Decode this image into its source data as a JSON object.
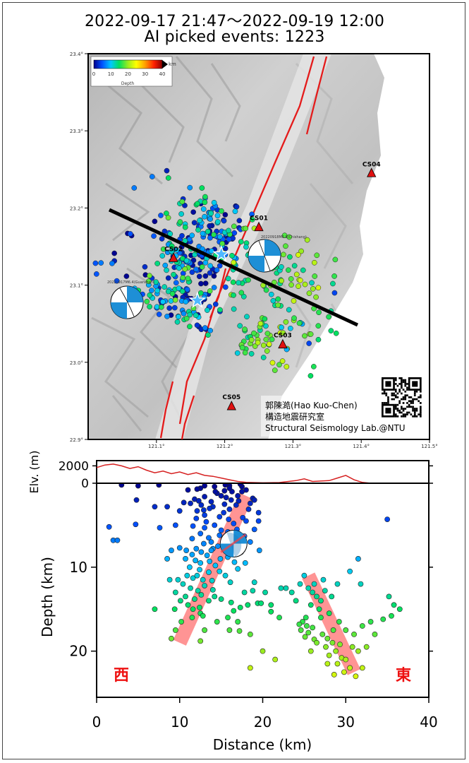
{
  "title_line1": "2022-09-17 21:47～2022-09-19 12:00",
  "title_line2": "AI picked events: 1223",
  "map": {
    "lon_ticks": [
      "121.1°",
      "121.2°",
      "121.3°",
      "121.4°",
      "121.5°"
    ],
    "lat_ticks": [
      "23.4°",
      "23.3°",
      "23.2°",
      "23.1°",
      "23.0°",
      "22.9°"
    ],
    "depth_scale": {
      "ticks": [
        "0",
        "10",
        "20",
        "30",
        "40"
      ],
      "unit": "km",
      "label": "Depth",
      "colors": [
        "#00008b",
        "#0050ff",
        "#00c8ff",
        "#00e060",
        "#9aec20",
        "#ffff00",
        "#ffa000",
        "#ff2000",
        "#8b0000"
      ]
    },
    "stations": [
      {
        "name": "CS01",
        "lon": 121.25,
        "lat": 23.175
      },
      {
        "name": "CS02",
        "lon": 121.125,
        "lat": 23.135
      },
      {
        "name": "CS03",
        "lon": 121.285,
        "lat": 23.023
      },
      {
        "name": "CS04",
        "lon": 121.415,
        "lat": 23.245
      },
      {
        "name": "CS05",
        "lon": 121.21,
        "lat": 22.943
      }
    ],
    "mainshocks": [
      {
        "lon": 121.195,
        "lat": 23.14
      },
      {
        "lon": 121.16,
        "lat": 23.08
      }
    ],
    "beachball_labels": [
      "20220918M6.8(Chishang)",
      "20220917M6.4(Guanshan)"
    ],
    "credits": [
      "郭陳澔(Hao Kuo-Chen)",
      "構造地震研究室",
      "Structural Seismology Lab.@NTU"
    ]
  },
  "chart_data": {
    "type": "scatter",
    "title": "",
    "xlabel": "Distance (km)",
    "ylabel": "Depth (km)",
    "elev_label": "Elv. (m)",
    "xlim": [
      0,
      40
    ],
    "ylim": [
      25.5,
      0
    ],
    "elev_lim": [
      0,
      2600
    ],
    "x_ticks": [
      0,
      10,
      20,
      30,
      40
    ],
    "depth_ticks": [
      10,
      20
    ],
    "elev_ticks": [
      0,
      2000
    ],
    "labels": {
      "west": "西",
      "east": "東"
    },
    "elevation": [
      [
        0,
        1800
      ],
      [
        1,
        2100
      ],
      [
        2,
        2200
      ],
      [
        3,
        2000
      ],
      [
        4,
        1700
      ],
      [
        5,
        1900
      ],
      [
        6,
        1500
      ],
      [
        7,
        1200
      ],
      [
        8,
        1400
      ],
      [
        9,
        1100
      ],
      [
        10,
        1300
      ],
      [
        11,
        1000
      ],
      [
        12,
        1200
      ],
      [
        13,
        900
      ],
      [
        14,
        800
      ],
      [
        15,
        600
      ],
      [
        16,
        400
      ],
      [
        17,
        200
      ],
      [
        18,
        100
      ],
      [
        20,
        50
      ],
      [
        22,
        80
      ],
      [
        24,
        300
      ],
      [
        25,
        500
      ],
      [
        26,
        200
      ],
      [
        28,
        300
      ],
      [
        29,
        600
      ],
      [
        30,
        900
      ],
      [
        31,
        400
      ],
      [
        32,
        100
      ],
      [
        33,
        0
      ],
      [
        40,
        0
      ]
    ],
    "fault_zones": [
      {
        "top": [
          18,
          1.5
        ],
        "bottom": [
          10,
          19
        ]
      },
      {
        "top": [
          25.5,
          11
        ],
        "bottom": [
          31,
          22.5
        ]
      }
    ],
    "mainshock_section": {
      "x": 16.5,
      "depth": 7.2
    },
    "events": [
      [
        3.0,
        0.2
      ],
      [
        5.0,
        0.3
      ],
      [
        7.5,
        0.2
      ],
      [
        13.0,
        0.3
      ],
      [
        16.0,
        0.3
      ],
      [
        15.5,
        0.2
      ],
      [
        17.5,
        0.4
      ],
      [
        11.0,
        0.8
      ],
      [
        12.5,
        0.6
      ],
      [
        17.3,
        0.1
      ],
      [
        12.1,
        0.7
      ],
      [
        16.3,
        1.0
      ],
      [
        16.0,
        0.6
      ],
      [
        14.2,
        0.4
      ],
      [
        18.0,
        0.8
      ],
      [
        15.4,
        0.9
      ],
      [
        16.2,
        2.0
      ],
      [
        14.5,
        1.2
      ],
      [
        15.0,
        1.5
      ],
      [
        13.0,
        1.6
      ],
      [
        11.8,
        1.9
      ],
      [
        12.3,
        2.1
      ],
      [
        17.5,
        1.0
      ],
      [
        18.8,
        1.8
      ],
      [
        17.0,
        1.5
      ],
      [
        19.0,
        2.0
      ],
      [
        15.6,
        1.7
      ],
      [
        13.8,
        2.2
      ],
      [
        14.3,
        1.0
      ],
      [
        16.8,
        2.6
      ],
      [
        14.0,
        2.8
      ],
      [
        11.3,
        2.4
      ],
      [
        13.6,
        3.0
      ],
      [
        12.9,
        3.2
      ],
      [
        15.3,
        3.5
      ],
      [
        13.0,
        3.8
      ],
      [
        16.0,
        3.1
      ],
      [
        14.8,
        4.0
      ],
      [
        15.4,
        2.5
      ],
      [
        10.5,
        2.3
      ],
      [
        18.5,
        2.4
      ],
      [
        12.6,
        2.6
      ],
      [
        17.1,
        2.1
      ],
      [
        18.3,
        3.1
      ],
      [
        19.5,
        3.5
      ],
      [
        12.0,
        4.2
      ],
      [
        13.2,
        4.6
      ],
      [
        15.9,
        4.3
      ],
      [
        17.6,
        4.1
      ],
      [
        16.5,
        4.8
      ],
      [
        18.0,
        4.5
      ],
      [
        14.2,
        5.0
      ],
      [
        13.0,
        5.3
      ],
      [
        15.0,
        5.6
      ],
      [
        11.6,
        5.1
      ],
      [
        12.1,
        3.3
      ],
      [
        4.8,
        2.0
      ],
      [
        7.0,
        2.8
      ],
      [
        8.5,
        2.8
      ],
      [
        10.0,
        3.3
      ],
      [
        9.5,
        5.0
      ],
      [
        1.5,
        5.2
      ],
      [
        4.7,
        4.9
      ],
      [
        7.6,
        5.3
      ],
      [
        12.5,
        6.0
      ],
      [
        13.5,
        6.5
      ],
      [
        14.8,
        6.2
      ],
      [
        15.8,
        5.8
      ],
      [
        17.8,
        6.3
      ],
      [
        18.5,
        7.0
      ],
      [
        19.0,
        5.5
      ],
      [
        13.8,
        7.0
      ],
      [
        16.0,
        6.8
      ],
      [
        15.2,
        7.3
      ],
      [
        14.6,
        7.5
      ],
      [
        17.0,
        7.0
      ],
      [
        16.0,
        8.0
      ],
      [
        14.0,
        7.8
      ],
      [
        17.4,
        8.2
      ],
      [
        19.6,
        8.0
      ],
      [
        12.9,
        7.2
      ],
      [
        2.0,
        6.8
      ],
      [
        2.5,
        6.8
      ],
      [
        35.0,
        4.3
      ],
      [
        19.5,
        4.5
      ],
      [
        16.9,
        5.5
      ],
      [
        15.6,
        6.5
      ],
      [
        11.5,
        6.6
      ],
      [
        10.0,
        7.7
      ],
      [
        10.8,
        8.0
      ],
      [
        11.5,
        8.5
      ],
      [
        12.0,
        7.8
      ],
      [
        12.6,
        8.2
      ],
      [
        13.3,
        8.6
      ],
      [
        13.8,
        8.0
      ],
      [
        11.9,
        9.2
      ],
      [
        10.7,
        9.0
      ],
      [
        12.5,
        9.5
      ],
      [
        13.6,
        9.3
      ],
      [
        14.3,
        9.8
      ],
      [
        11.2,
        10.0
      ],
      [
        12.4,
        10.3
      ],
      [
        13.5,
        10.6
      ],
      [
        10.9,
        11.0
      ],
      [
        11.6,
        11.3
      ],
      [
        12.8,
        11.5
      ],
      [
        14.8,
        10.5
      ],
      [
        15.5,
        11.0
      ],
      [
        16.1,
        11.8
      ],
      [
        17.0,
        10.2
      ],
      [
        17.9,
        9.5
      ],
      [
        16.6,
        9.4
      ],
      [
        15.8,
        8.8
      ],
      [
        14.9,
        9.0
      ],
      [
        10.4,
        12.0
      ],
      [
        11.3,
        12.5
      ],
      [
        12.2,
        12.8
      ],
      [
        13.0,
        12.2
      ],
      [
        14.0,
        12.7
      ],
      [
        10.7,
        13.5
      ],
      [
        11.8,
        13.8
      ],
      [
        12.6,
        13.3
      ],
      [
        13.5,
        14.0
      ],
      [
        11.0,
        14.5
      ],
      [
        11.6,
        15.0
      ],
      [
        12.4,
        14.8
      ],
      [
        14.2,
        13.5
      ],
      [
        15.0,
        13.8
      ],
      [
        16.2,
        14.2
      ],
      [
        17.3,
        14.8
      ],
      [
        18.2,
        14.5
      ],
      [
        19.4,
        14.3
      ],
      [
        19.8,
        14.3
      ],
      [
        9.5,
        13.0
      ],
      [
        9.8,
        11.5
      ],
      [
        8.5,
        9.0
      ],
      [
        9.0,
        8.0
      ],
      [
        8.8,
        11.5
      ],
      [
        9.4,
        15.0
      ],
      [
        7.0,
        15.0
      ],
      [
        10.2,
        16.5
      ],
      [
        11.5,
        16.0
      ],
      [
        12.5,
        15.5
      ],
      [
        14.5,
        16.5
      ],
      [
        15.8,
        16.0
      ],
      [
        17.0,
        16.5
      ],
      [
        13.0,
        17.5
      ],
      [
        16.0,
        17.5
      ],
      [
        12.8,
        15.8
      ],
      [
        10.1,
        14.0
      ],
      [
        13.9,
        11.6
      ],
      [
        12.1,
        11.0
      ],
      [
        9.0,
        18.5
      ],
      [
        9.5,
        17.5
      ],
      [
        18.5,
        18.0
      ],
      [
        17.2,
        17.6
      ],
      [
        18.5,
        22.0
      ],
      [
        20.0,
        20.0
      ],
      [
        21.5,
        21.0
      ],
      [
        12.5,
        18.8
      ],
      [
        23.5,
        13.0
      ],
      [
        22.8,
        12.5
      ],
      [
        25.0,
        11.0
      ],
      [
        25.5,
        12.5
      ],
      [
        26.0,
        13.0
      ],
      [
        26.5,
        13.5
      ],
      [
        27.0,
        14.0
      ],
      [
        26.2,
        12.0
      ],
      [
        27.5,
        12.8
      ],
      [
        26.8,
        15.0
      ],
      [
        25.8,
        14.5
      ],
      [
        27.3,
        11.5
      ],
      [
        28.3,
        13.5
      ],
      [
        25.2,
        16.0
      ],
      [
        24.5,
        12.0
      ],
      [
        24.0,
        14.0
      ],
      [
        24.8,
        16.5
      ],
      [
        25.3,
        17.0
      ],
      [
        24.6,
        17.5
      ],
      [
        25.5,
        17.8
      ],
      [
        26.0,
        17.2
      ],
      [
        25.1,
        18.3
      ],
      [
        24.4,
        16.8
      ],
      [
        26.2,
        18.6
      ],
      [
        27.2,
        18.0
      ],
      [
        27.8,
        18.5
      ],
      [
        28.4,
        19.0
      ],
      [
        27.6,
        19.5
      ],
      [
        28.8,
        20.0
      ],
      [
        29.3,
        19.2
      ],
      [
        28.0,
        20.5
      ],
      [
        29.5,
        20.8
      ],
      [
        29.0,
        21.5
      ],
      [
        30.0,
        21.0
      ],
      [
        30.5,
        22.0
      ],
      [
        29.8,
        22.5
      ],
      [
        30.8,
        19.5
      ],
      [
        31.5,
        20.0
      ],
      [
        32.5,
        19.5
      ],
      [
        32.0,
        22.0
      ],
      [
        30.0,
        17.5
      ],
      [
        31.0,
        18.0
      ],
      [
        28.5,
        17.5
      ],
      [
        30.5,
        10.5
      ],
      [
        31.5,
        9.0
      ],
      [
        29.0,
        12.0
      ],
      [
        31.8,
        12.0
      ],
      [
        33.0,
        16.5
      ],
      [
        34.5,
        16.2
      ],
      [
        35.5,
        15.8
      ],
      [
        36.5,
        15.0
      ],
      [
        35.2,
        13.5
      ],
      [
        35.8,
        14.5
      ],
      [
        33.5,
        18.0
      ],
      [
        32.0,
        17.0
      ],
      [
        22.0,
        16.0
      ],
      [
        28.0,
        15.5
      ],
      [
        29.2,
        16.5
      ],
      [
        27.0,
        16.0
      ],
      [
        26.5,
        19.0
      ],
      [
        27.8,
        21.5
      ],
      [
        31.2,
        23.0
      ],
      [
        25.8,
        20.0
      ],
      [
        28.6,
        22.8
      ],
      [
        20.3,
        13.0
      ],
      [
        21.0,
        14.5
      ],
      [
        21.0,
        15.3
      ],
      [
        22.2,
        12.5
      ],
      [
        16.5,
        15.2
      ],
      [
        17.8,
        13.0
      ],
      [
        19.0,
        11.8
      ],
      [
        18.8,
        12.8
      ]
    ]
  }
}
